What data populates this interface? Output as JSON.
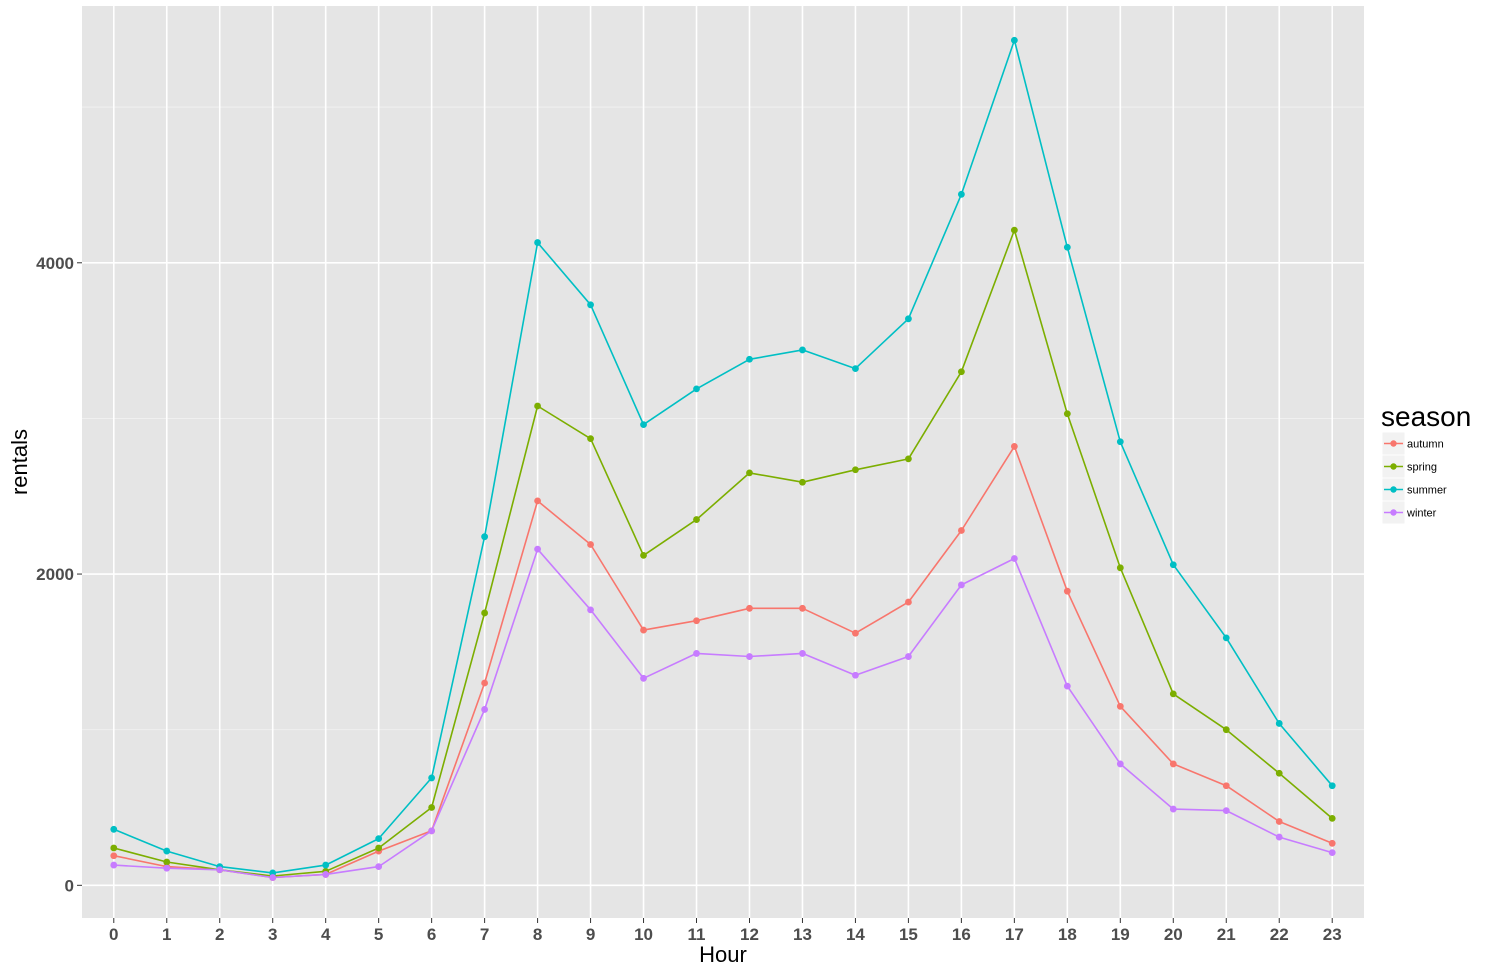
{
  "chart_data": {
    "type": "line",
    "title": "",
    "xlabel": "Hour",
    "ylabel": "rentals",
    "x": [
      0,
      1,
      2,
      3,
      4,
      5,
      6,
      7,
      8,
      9,
      10,
      11,
      12,
      13,
      14,
      15,
      16,
      17,
      18,
      19,
      20,
      21,
      22,
      23
    ],
    "x_tick_labels": [
      "0",
      "1",
      "2",
      "3",
      "4",
      "5",
      "6",
      "7",
      "8",
      "9",
      "10",
      "11",
      "12",
      "13",
      "14",
      "15",
      "16",
      "17",
      "18",
      "19",
      "20",
      "21",
      "22",
      "23"
    ],
    "y_ticks": [
      0,
      2000,
      4000
    ],
    "y_tick_labels": [
      "0",
      "2000",
      "4000"
    ],
    "xlim": [
      -0.6,
      23.6
    ],
    "ylim": [
      -210,
      5650
    ],
    "grid": true,
    "legend": {
      "title": "season",
      "position": "right"
    },
    "series": [
      {
        "name": "autumn",
        "color": "#F8766D",
        "values": [
          190,
          120,
          100,
          50,
          70,
          220,
          350,
          1300,
          2470,
          2190,
          1640,
          1700,
          1780,
          1780,
          1620,
          1820,
          2280,
          2820,
          1890,
          1150,
          780,
          640,
          410,
          270
        ]
      },
      {
        "name": "spring",
        "color": "#7CAE00",
        "values": [
          240,
          150,
          100,
          60,
          90,
          240,
          500,
          1750,
          3080,
          2870,
          2120,
          2350,
          2650,
          2590,
          2670,
          2740,
          3300,
          4210,
          3030,
          2040,
          1230,
          1000,
          720,
          430
        ]
      },
      {
        "name": "summer",
        "color": "#00BFC4",
        "values": [
          360,
          220,
          120,
          80,
          130,
          300,
          690,
          2240,
          4130,
          3730,
          2960,
          3190,
          3380,
          3440,
          3320,
          3640,
          4440,
          5430,
          4100,
          2850,
          2060,
          1590,
          1040,
          640
        ]
      },
      {
        "name": "winter",
        "color": "#C77CFF",
        "values": [
          130,
          110,
          100,
          50,
          70,
          120,
          350,
          1130,
          2160,
          1770,
          1330,
          1490,
          1470,
          1490,
          1350,
          1470,
          1930,
          2100,
          1280,
          780,
          490,
          480,
          310,
          210
        ]
      }
    ]
  }
}
